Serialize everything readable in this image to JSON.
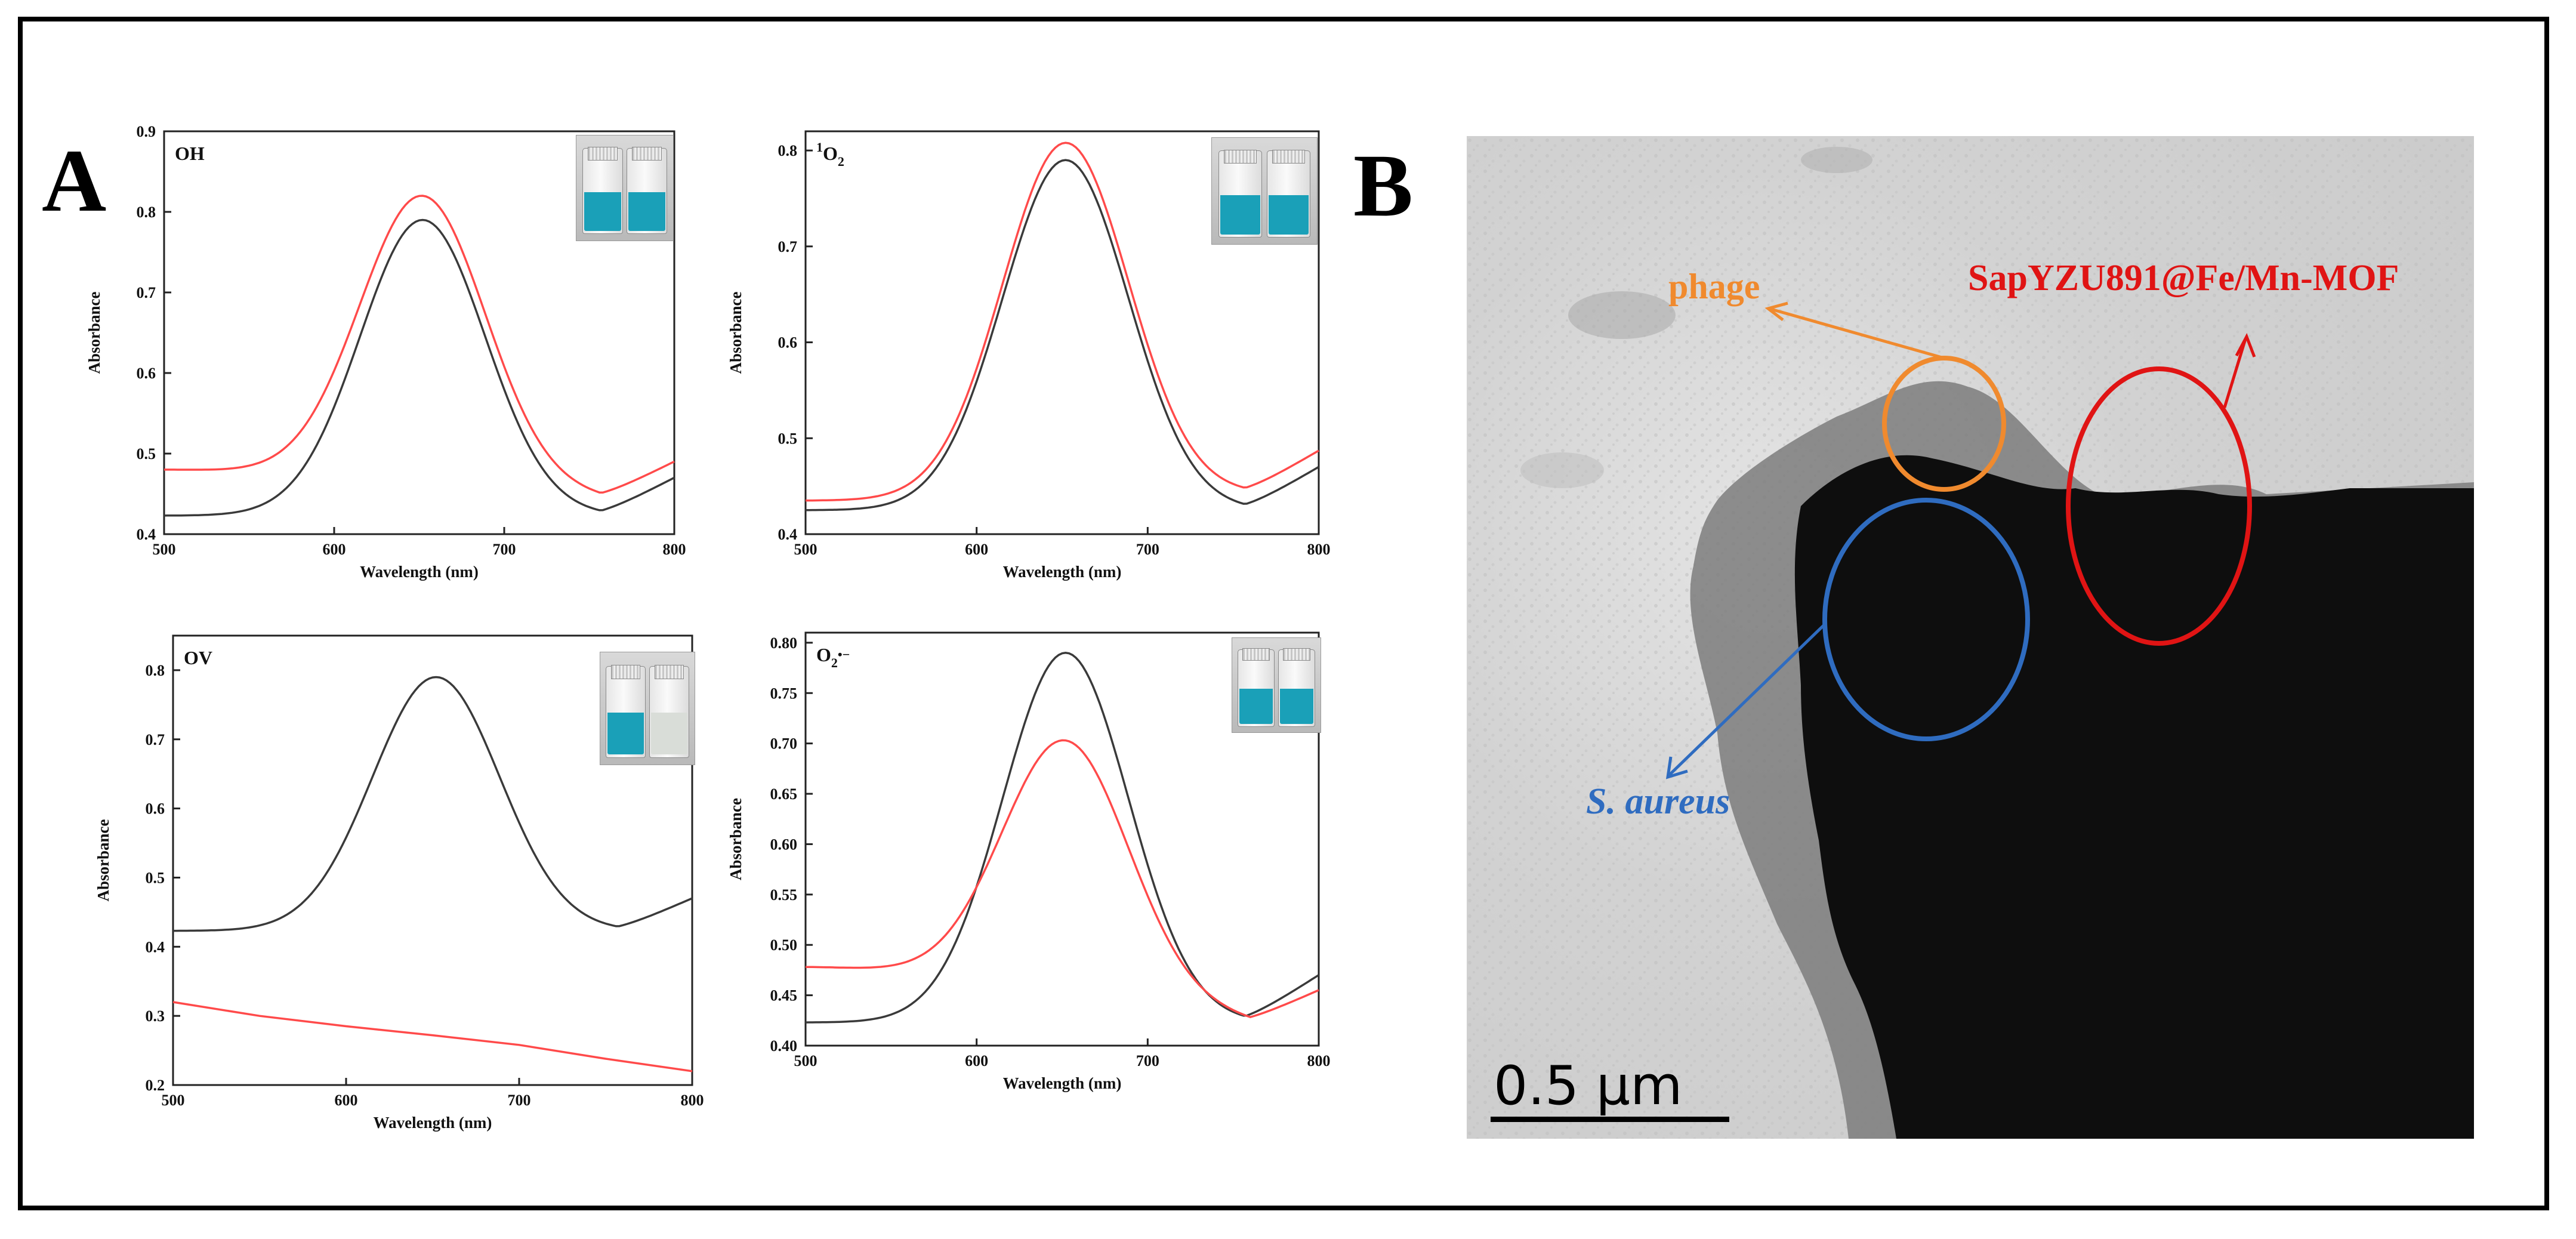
{
  "panels": {
    "a_label": "A",
    "b_label": "B"
  },
  "colors": {
    "black_series": "#3a3a3a",
    "red_series": "#ff4a4a",
    "vial_blue": "#1aa0b8",
    "vial_clear": "#d9ddd8",
    "phage": "#f08a2e",
    "aureus": "#2f6cc0",
    "mof": "#e01414"
  },
  "chart_data": [
    {
      "type": "line",
      "panel_label": "OH",
      "xlabel": "Wavelength (nm)",
      "ylabel": "Absorbance",
      "xlim": [
        500,
        800
      ],
      "ylim": [
        0.4,
        0.9
      ],
      "xticks": [
        500,
        600,
        700,
        800
      ],
      "yticks": [
        0.4,
        0.5,
        0.6,
        0.7,
        0.8,
        0.9
      ],
      "yticklabels": [
        "0.4",
        "0.5",
        "0.6",
        "0.7",
        "0.8",
        "0.9"
      ],
      "inset_vials": [
        "blue",
        "blue"
      ],
      "series": [
        {
          "color": "black",
          "baseline_left": 0.423,
          "peak_x": 652,
          "peak_y": 0.79,
          "min_x": 757,
          "min_y": 0.423,
          "end_y": 0.47
        },
        {
          "color": "red",
          "baseline_left": 0.48,
          "peak_x": 652,
          "peak_y": 0.82,
          "min_x": 757,
          "min_y": 0.445,
          "end_y": 0.49
        }
      ]
    },
    {
      "type": "line",
      "panel_label": "1O2",
      "panel_label_sup": "1",
      "panel_label_main": "O",
      "panel_label_sub": "2",
      "xlabel": "Wavelength (nm)",
      "ylabel": "Absorbance",
      "xlim": [
        500,
        800
      ],
      "ylim": [
        0.4,
        0.82
      ],
      "xticks": [
        500,
        600,
        700,
        800
      ],
      "yticks": [
        0.4,
        0.5,
        0.6,
        0.7,
        0.8
      ],
      "yticklabels": [
        "0.4",
        "0.5",
        "0.6",
        "0.7",
        "0.8"
      ],
      "inset_vials": [
        "blue",
        "blue"
      ],
      "series": [
        {
          "color": "black",
          "baseline_left": 0.425,
          "peak_x": 652,
          "peak_y": 0.79,
          "min_x": 757,
          "min_y": 0.425,
          "end_y": 0.47
        },
        {
          "color": "red",
          "baseline_left": 0.435,
          "peak_x": 652,
          "peak_y": 0.808,
          "min_x": 757,
          "min_y": 0.442,
          "end_y": 0.487
        }
      ]
    },
    {
      "type": "line",
      "panel_label": "OV",
      "xlabel": "Wavelength (nm)",
      "ylabel": "Absorbance",
      "xlim": [
        500,
        800
      ],
      "ylim": [
        0.2,
        0.85
      ],
      "xticks": [
        500,
        600,
        700,
        800
      ],
      "yticks": [
        0.2,
        0.3,
        0.4,
        0.5,
        0.6,
        0.7,
        0.8
      ],
      "yticklabels": [
        "0.2",
        "0.3",
        "0.4",
        "0.5",
        "0.6",
        "0.7",
        "0.8"
      ],
      "inset_vials": [
        "blue",
        "clear"
      ],
      "series": [
        {
          "color": "black",
          "baseline_left": 0.423,
          "peak_x": 652,
          "peak_y": 0.79,
          "min_x": 757,
          "min_y": 0.423,
          "end_y": 0.47
        },
        {
          "color": "red",
          "linear": true,
          "x": [
            500,
            550,
            600,
            650,
            700,
            750,
            800
          ],
          "y": [
            0.32,
            0.3,
            0.285,
            0.272,
            0.258,
            0.238,
            0.22
          ]
        }
      ]
    },
    {
      "type": "line",
      "panel_label": "O2•−",
      "panel_label_main": "O",
      "panel_label_sub": "2",
      "panel_label_sup": "•−",
      "xlabel": "Wavelength (nm)",
      "ylabel": "Absorbance",
      "xlim": [
        500,
        800
      ],
      "ylim": [
        0.4,
        0.81
      ],
      "xticks": [
        500,
        600,
        700,
        800
      ],
      "yticks": [
        0.4,
        0.45,
        0.5,
        0.55,
        0.6,
        0.65,
        0.7,
        0.75,
        0.8
      ],
      "yticklabels": [
        "0.40",
        "0.45",
        "0.50",
        "0.55",
        "0.60",
        "0.65",
        "0.70",
        "0.75",
        "0.80"
      ],
      "inset_vials": [
        "blue",
        "blue"
      ],
      "series": [
        {
          "color": "black",
          "baseline_left": 0.423,
          "peak_x": 652,
          "peak_y": 0.79,
          "min_x": 757,
          "min_y": 0.423,
          "end_y": 0.47
        },
        {
          "color": "red",
          "baseline_left": 0.478,
          "peak_x": 652,
          "peak_y": 0.703,
          "min_x": 760,
          "min_y": 0.425,
          "end_y": 0.455
        }
      ]
    }
  ],
  "tem": {
    "phage_label": "phage",
    "aureus_label": "S. aureus",
    "mof_label": "SapYZU891@Fe/Mn-MOF",
    "scale_label": "0.5 μm"
  }
}
